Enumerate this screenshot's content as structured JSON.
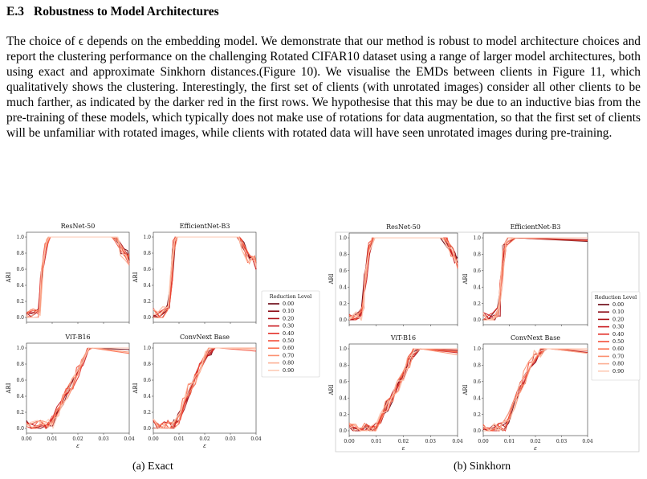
{
  "section": {
    "number": "E.3",
    "title": "Robustness to Model Architectures"
  },
  "paragraph": "The choice of ϵ depends on the embedding model. We demonstrate that our method is robust to model architecture choices and report the clustering performance on the challenging Rotated CIFAR10 dataset using a range of larger model architectures, both using exact and approximate Sinkhorn distances.(Figure 10). We visualise the EMDs between clients in Figure 11, which qualitatively shows the clustering. Interestingly, the first set of clients (with unrotated images) consider all other clients to be much farther, as indicated by the darker red in the first rows. We hypothesise that this may be due to an inductive bias from the pre-training of these models, which typically does not make use of rotations for data augmentation, so that the first set of clients will be unfamiliar with rotated images, while clients with rotated data will have seen unrotated images during pre-training.",
  "figure": {
    "subcaption_a": "(a) Exact",
    "subcaption_b": "(b) Sinkhorn"
  },
  "chart_data": [
    {
      "panel": "(a) Exact",
      "type": "line",
      "legend": {
        "title": "Reduction Level",
        "labels": [
          "0.00",
          "0.10",
          "0.20",
          "0.30",
          "0.40",
          "0.50",
          "0.60",
          "0.70",
          "0.80",
          "0.90"
        ],
        "placement": "right"
      },
      "series_colors": [
        "#67000d",
        "#8a0812",
        "#ab1016",
        "#c9181d",
        "#e32f27",
        "#f44f39",
        "#fb7050",
        "#fc9070",
        "#fcaf93",
        "#fdcab5"
      ],
      "xlabel": "ε",
      "ylabel": "ARI",
      "xlim": [
        0.0,
        0.04
      ],
      "ylim": [
        0.0,
        1.0
      ],
      "xticks": [
        "0.00",
        "0.01",
        "0.02",
        "0.03",
        "0.04"
      ],
      "yticks": [
        "0.0",
        "0.2",
        "0.4",
        "0.6",
        "0.8",
        "1.0"
      ],
      "subplots": [
        {
          "title": "ResNet-50",
          "x": [
            0.0,
            0.002,
            0.004,
            0.005,
            0.006,
            0.0075,
            0.009,
            0.033,
            0.035,
            0.037,
            0.039,
            0.04
          ],
          "y": [
            0.0,
            0.03,
            0.05,
            0.1,
            0.55,
            0.9,
            1.0,
            1.0,
            0.95,
            0.85,
            0.78,
            0.72
          ]
        },
        {
          "title": "EfficientNet-B3",
          "x": [
            0.0,
            0.002,
            0.004,
            0.006,
            0.007,
            0.008,
            0.009,
            0.033,
            0.035,
            0.037,
            0.039,
            0.04
          ],
          "y": [
            0.05,
            0.0,
            0.05,
            0.1,
            0.45,
            0.9,
            1.0,
            1.0,
            0.9,
            0.75,
            0.7,
            0.62
          ]
        },
        {
          "title": "ViT-B16",
          "x": [
            0.0,
            0.002,
            0.004,
            0.006,
            0.008,
            0.01,
            0.012,
            0.014,
            0.016,
            0.018,
            0.02,
            0.022,
            0.024,
            0.026,
            0.04
          ],
          "y": [
            0.05,
            0.0,
            0.02,
            0.03,
            0.04,
            0.08,
            0.2,
            0.35,
            0.45,
            0.55,
            0.72,
            0.85,
            0.97,
            1.0,
            1.0
          ]
        },
        {
          "title": "ConvNext Base",
          "x": [
            0.0,
            0.002,
            0.004,
            0.006,
            0.008,
            0.01,
            0.012,
            0.014,
            0.016,
            0.018,
            0.02,
            0.022,
            0.024,
            0.026,
            0.04
          ],
          "y": [
            0.05,
            0.0,
            0.02,
            0.03,
            0.06,
            0.12,
            0.3,
            0.48,
            0.62,
            0.75,
            0.88,
            0.97,
            1.0,
            1.0,
            1.0
          ]
        }
      ]
    },
    {
      "panel": "(b) Sinkhorn",
      "type": "line",
      "legend": {
        "title": "Reduction Level",
        "labels": [
          "0.00",
          "0.10",
          "0.20",
          "0.30",
          "0.40",
          "0.50",
          "0.60",
          "0.70",
          "0.80",
          "0.90"
        ],
        "placement": "right"
      },
      "series_colors": [
        "#67000d",
        "#8a0812",
        "#ab1016",
        "#c9181d",
        "#e32f27",
        "#f44f39",
        "#fb7050",
        "#fc9070",
        "#fcaf93",
        "#fdcab5"
      ],
      "xlabel": "ε",
      "ylabel": "ARI",
      "xlim": [
        0.0,
        0.04
      ],
      "ylim": [
        0.0,
        1.0
      ],
      "xticks": [
        "0.00",
        "0.01",
        "0.02",
        "0.03",
        "0.04"
      ],
      "yticks": [
        "0.0",
        "0.2",
        "0.4",
        "0.6",
        "0.8",
        "1.0"
      ],
      "subplots": [
        {
          "title": "ResNet-50",
          "x": [
            0.0,
            0.002,
            0.004,
            0.005,
            0.006,
            0.0075,
            0.009,
            0.034,
            0.036,
            0.038,
            0.039,
            0.04
          ],
          "y": [
            0.0,
            0.03,
            0.04,
            0.1,
            0.5,
            0.88,
            1.0,
            1.0,
            0.95,
            0.85,
            0.75,
            0.7
          ]
        },
        {
          "title": "EfficientNet-B3",
          "x": [
            0.0,
            0.002,
            0.004,
            0.006,
            0.007,
            0.008,
            0.009,
            0.012,
            0.04
          ],
          "y": [
            0.03,
            0.0,
            0.04,
            0.1,
            0.5,
            0.88,
            0.97,
            1.0,
            1.0
          ]
        },
        {
          "title": "ViT-B16",
          "x": [
            0.0,
            0.002,
            0.004,
            0.006,
            0.008,
            0.01,
            0.012,
            0.014,
            0.016,
            0.018,
            0.02,
            0.022,
            0.024,
            0.026,
            0.04
          ],
          "y": [
            0.04,
            0.0,
            0.01,
            0.02,
            0.03,
            0.05,
            0.15,
            0.3,
            0.42,
            0.55,
            0.7,
            0.85,
            0.97,
            1.0,
            1.0
          ]
        },
        {
          "title": "ConvNext Base",
          "x": [
            0.0,
            0.002,
            0.004,
            0.006,
            0.008,
            0.01,
            0.012,
            0.014,
            0.016,
            0.018,
            0.02,
            0.022,
            0.024,
            0.026,
            0.04
          ],
          "y": [
            0.04,
            0.0,
            0.02,
            0.03,
            0.05,
            0.15,
            0.35,
            0.52,
            0.65,
            0.78,
            0.9,
            0.98,
            1.0,
            1.0,
            1.0
          ]
        }
      ]
    }
  ]
}
